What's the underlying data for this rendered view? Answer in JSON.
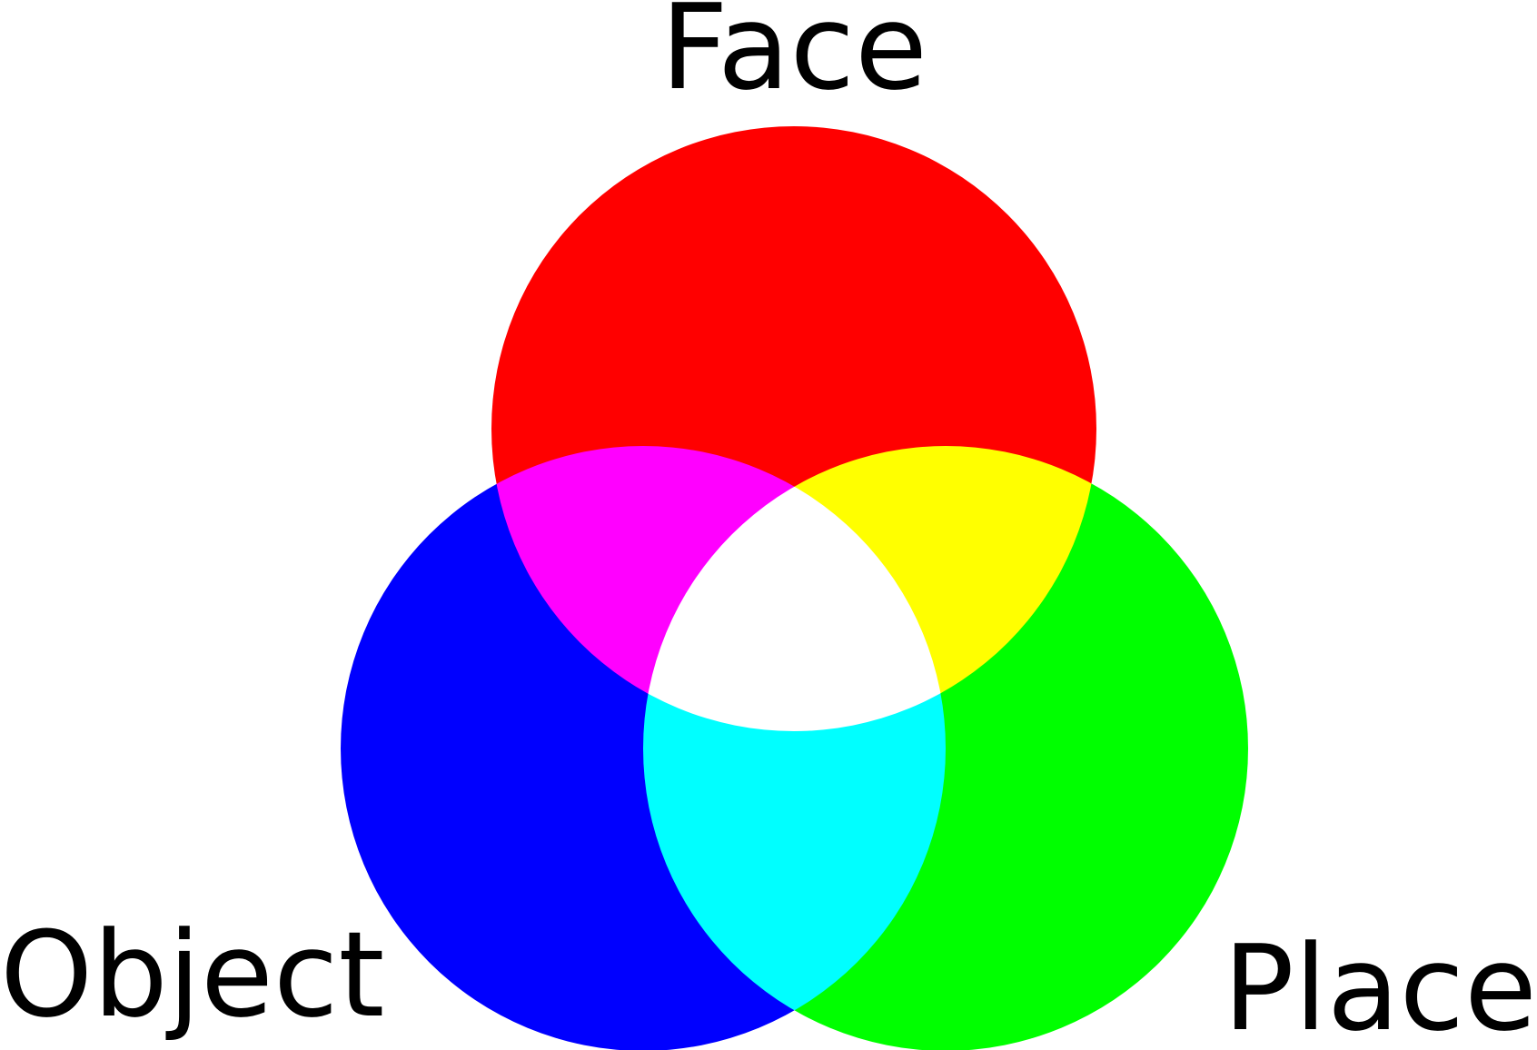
{
  "diagram": {
    "type": "venn",
    "sets": [
      {
        "id": "face",
        "label": "Face",
        "color": "#ff0000"
      },
      {
        "id": "object",
        "label": "Object",
        "color": "#0000ff"
      },
      {
        "id": "place",
        "label": "Place",
        "color": "#00ff00"
      }
    ],
    "overlaps": [
      {
        "sets": [
          "face",
          "object"
        ],
        "color": "#ff00ff"
      },
      {
        "sets": [
          "face",
          "place"
        ],
        "color": "#ffff00"
      },
      {
        "sets": [
          "object",
          "place"
        ],
        "color": "#00ffff"
      },
      {
        "sets": [
          "face",
          "object",
          "place"
        ],
        "color": "#ffffff"
      }
    ]
  }
}
